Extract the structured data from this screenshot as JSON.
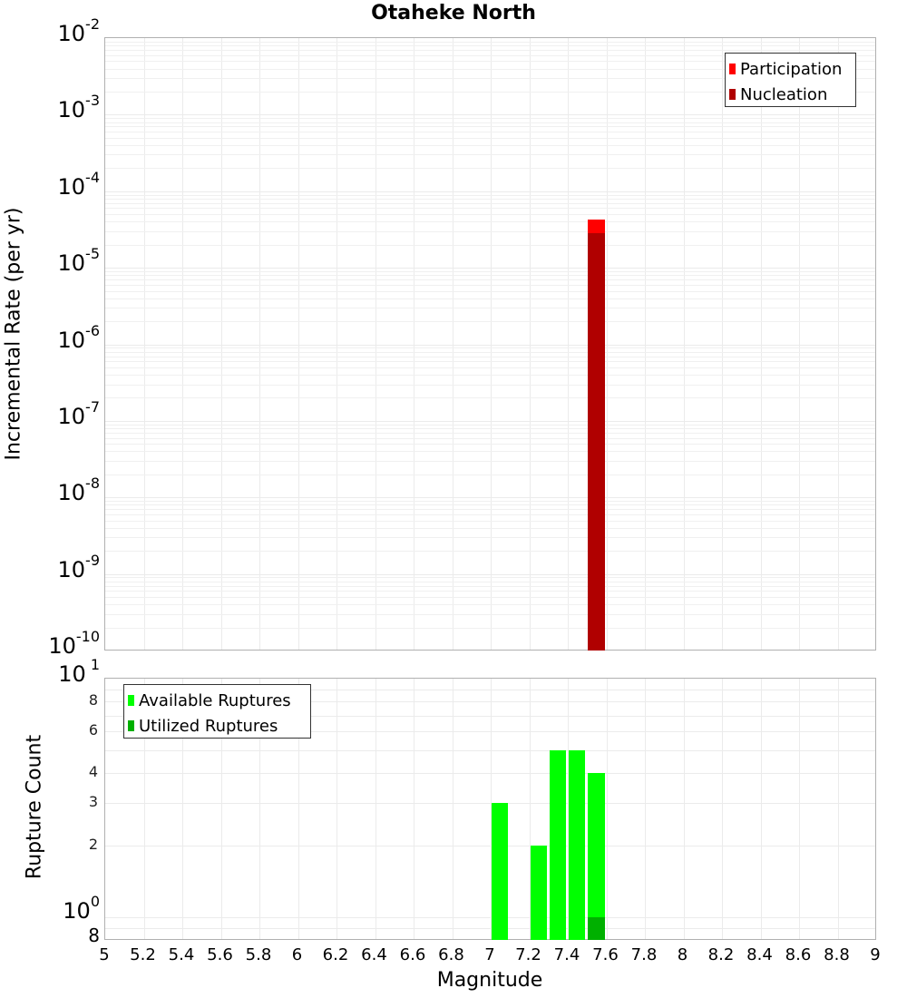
{
  "title": "Otaheke North",
  "chart_data": [
    {
      "type": "bar",
      "title": "Otaheke North",
      "xlabel": "Magnitude",
      "ylabel": "Incremental Rate (per yr)",
      "yscale": "log",
      "ylim": [
        1e-10,
        0.01
      ],
      "xlim": [
        5,
        9
      ],
      "grid": true,
      "legend_position": "top-right",
      "series": [
        {
          "name": "Participation",
          "color": "#ff0000",
          "x": [
            7.55
          ],
          "values": [
            4.3e-05
          ]
        },
        {
          "name": "Nucleation",
          "color": "#b00000",
          "x": [
            7.55
          ],
          "values": [
            2.8e-05
          ]
        }
      ],
      "ytick_labels": [
        "10^-2",
        "10^-3",
        "10^-4",
        "10^-5",
        "10^-6",
        "10^-7",
        "10^-8",
        "10^-9",
        "10^-10"
      ]
    },
    {
      "type": "bar",
      "xlabel": "Magnitude",
      "ylabel": "Rupture Count",
      "yscale": "log",
      "ylim": [
        0.8,
        10
      ],
      "xlim": [
        5,
        9
      ],
      "grid": true,
      "legend_position": "top-left",
      "series": [
        {
          "name": "Available Ruptures",
          "color": "#00ff00",
          "x": [
            7.05,
            7.25,
            7.35,
            7.45,
            7.55
          ],
          "values": [
            3,
            2,
            5,
            5,
            4
          ]
        },
        {
          "name": "Utilized Ruptures",
          "color": "#00b000",
          "x": [
            7.55
          ],
          "values": [
            1
          ]
        }
      ],
      "ytick_labels": [
        "10^1",
        "8",
        "6",
        "4",
        "3",
        "2",
        "10^0",
        "8"
      ]
    }
  ],
  "xaxis": {
    "label": "Magnitude",
    "ticks": [
      "5",
      "5.2",
      "5.4",
      "5.6",
      "5.8",
      "6",
      "6.2",
      "6.4",
      "6.6",
      "6.8",
      "7",
      "7.2",
      "7.4",
      "7.6",
      "7.8",
      "8",
      "8.2",
      "8.4",
      "8.6",
      "8.8",
      "9"
    ]
  },
  "top": {
    "ylabel": "Incremental Rate (per yr)",
    "legend": [
      {
        "label": "Participation",
        "color": "#ff0000"
      },
      {
        "label": "Nucleation",
        "color": "#b00000"
      }
    ]
  },
  "bottom": {
    "ylabel": "Rupture Count",
    "legend": [
      {
        "label": "Available Ruptures",
        "color": "#00ff00"
      },
      {
        "label": "Utilized Ruptures",
        "color": "#00b000"
      }
    ],
    "minor_ticks": [
      "8",
      "6",
      "4",
      "3",
      "2"
    ],
    "bottom_tick": "8"
  }
}
